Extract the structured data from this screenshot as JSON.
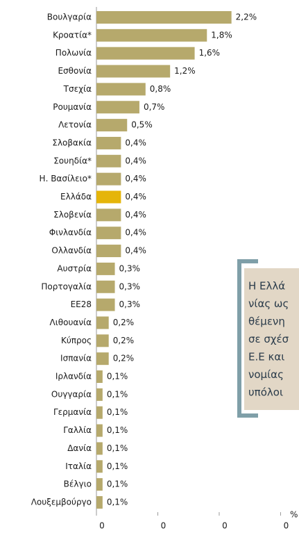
{
  "chart_data": {
    "type": "hbar",
    "categories": [
      "Βουλγαρία",
      "Κροατία*",
      "Πολωνία",
      "Εσθονία",
      "Τσεχία",
      "Ρουμανία",
      "Λετονία",
      "Σλοβακία",
      "Σουηδία*",
      "Η. Βασίλειο*",
      "Ελλάδα",
      "Σλοβενία",
      "Φινλανδία",
      "Ολλανδία",
      "Αυστρία",
      "Πορτογαλία",
      "ΕΕ28",
      "Λιθουανία",
      "Κύπρος",
      "Ισπανία",
      "Ιρλανδία",
      "Ουγγαρία",
      "Γερμανία",
      "Γαλλία",
      "Δανία",
      "Ιταλία",
      "Βέλγιο",
      "Λουξεμβούργο"
    ],
    "values": [
      2.2,
      1.8,
      1.6,
      1.2,
      0.8,
      0.7,
      0.5,
      0.4,
      0.4,
      0.4,
      0.4,
      0.4,
      0.4,
      0.4,
      0.3,
      0.3,
      0.3,
      0.2,
      0.2,
      0.2,
      0.1,
      0.1,
      0.1,
      0.1,
      0.1,
      0.1,
      0.1,
      0.1
    ],
    "value_labels": [
      "2,2%",
      "1,8%",
      "1,6%",
      "1,2%",
      "0,8%",
      "0,7%",
      "0,5%",
      "0,4%",
      "0,4%",
      "0,4%",
      "0,4%",
      "0,4%",
      "0,4%",
      "0,4%",
      "0,3%",
      "0,3%",
      "0,3%",
      "0,2%",
      "0,2%",
      "0,2%",
      "0,1%",
      "0,1%",
      "0,1%",
      "0,1%",
      "0,1%",
      "0,1%",
      "0,1%",
      "0,1%"
    ],
    "colors": [
      "#b6a96c",
      "#b6a96c",
      "#b6a96c",
      "#b6a96c",
      "#b6a96c",
      "#b6a96c",
      "#b6a96c",
      "#b6a96c",
      "#b6a96c",
      "#b6a96c",
      "#e5b50a",
      "#b6a96c",
      "#b6a96c",
      "#b6a96c",
      "#b6a96c",
      "#b6a96c",
      "#b6a96c",
      "#b6a96c",
      "#b6a96c",
      "#b6a96c",
      "#b6a96c",
      "#b6a96c",
      "#b6a96c",
      "#b6a96c",
      "#b6a96c",
      "#b6a96c",
      "#b6a96c",
      "#b6a96c"
    ],
    "xlim": [
      0,
      3.3
    ],
    "xticks": [
      0,
      {
        "value": 1,
        "label": "0"
      },
      {
        "value": 2,
        "label": "0"
      },
      {
        "value": 3,
        "label": "0"
      }
    ],
    "x_unit": "%",
    "annotation": [
      "Η Ελλά",
      "νίας ως",
      "θέμενη",
      "σε σχέσ",
      "Ε.Ε και",
      "νομίας",
      "υπόλοι"
    ]
  }
}
